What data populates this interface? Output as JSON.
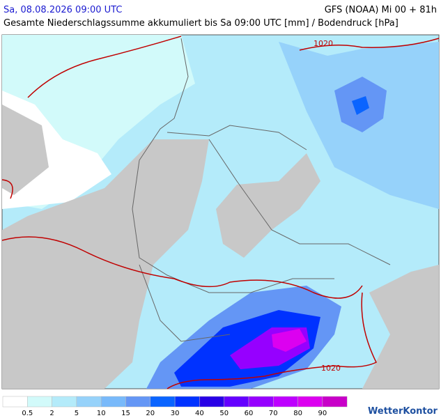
{
  "header": {
    "datetime": "Sa, 08.08.2026 09:00 UTC",
    "model": "GFS (NOAA) Mi 00 + 81h",
    "subtitle": "Gesamte Niederschlagssumme akkumuliert bis Sa 09:00 UTC [mm] / Bodendruck [hPa]"
  },
  "map": {
    "isobar_labels": [
      "1020",
      "1020"
    ]
  },
  "legend": {
    "colors": [
      "#ffffff",
      "#d2fafa",
      "#b4ebfa",
      "#96d2fa",
      "#78b9fa",
      "#6496f5",
      "#0a64ff",
      "#0032ff",
      "#2800e6",
      "#6400ff",
      "#9600ff",
      "#be00ff",
      "#dc00f0",
      "#c800c8"
    ],
    "labels": [
      0.5,
      2,
      5,
      10,
      15,
      20,
      30,
      40,
      50,
      60,
      70,
      80,
      90
    ]
  },
  "brand": "WetterKontor"
}
